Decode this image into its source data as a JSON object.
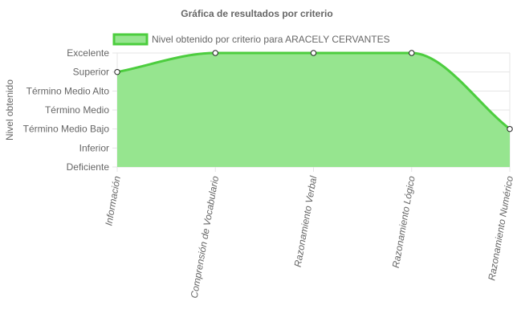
{
  "chart_data": {
    "type": "area",
    "title": "Gráfica de resultados por criterio",
    "ylabel": "Nivel obtenido",
    "xlabel": "",
    "categories": [
      "Información",
      "Comprensión de Vocabulario",
      "Razonamiento Verbal",
      "Razonamiento Lógico",
      "Razonamiento Numérico"
    ],
    "y_levels": [
      "Deficiente",
      "Inferior",
      "Término Medio Bajo",
      "Término Medio",
      "Término Medio Alto",
      "Superior",
      "Excelente"
    ],
    "ylim": [
      0,
      6
    ],
    "series": [
      {
        "name": "Nivel obtenido por criterio para ARACELY CERVANTES",
        "values": [
          5,
          6,
          6,
          6,
          2
        ],
        "value_labels": [
          "Superior",
          "Excelente",
          "Excelente",
          "Excelente",
          "Término Medio Bajo"
        ]
      }
    ],
    "legend_position": "top",
    "grid": true,
    "colors": {
      "line": "#4ccd3e",
      "fill": "#96e58f",
      "grid": "#e5e5e5",
      "text": "#666666"
    }
  }
}
